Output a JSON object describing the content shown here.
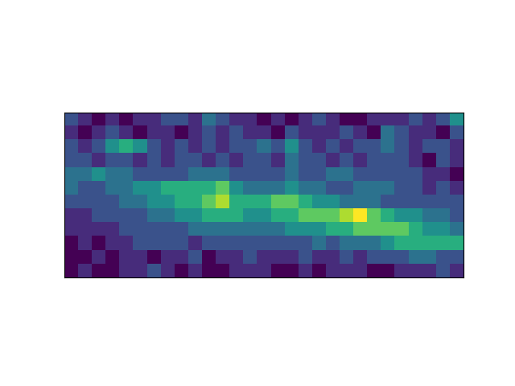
{
  "chart_data": {
    "type": "heatmap",
    "tick_labels": false,
    "cells": [
      [
        3,
        2,
        1,
        2,
        1,
        2,
        2,
        3,
        3,
        2,
        4,
        3,
        2,
        2,
        1,
        2,
        1,
        2,
        3,
        2,
        1,
        1,
        2,
        2,
        2,
        3,
        2,
        3,
        5
      ],
      [
        2,
        1,
        2,
        3,
        2,
        1,
        2,
        2,
        1,
        2,
        3,
        2,
        3,
        2,
        2,
        1,
        3,
        2,
        2,
        2,
        3,
        2,
        1,
        4,
        3,
        2,
        2,
        1,
        3
      ],
      [
        3,
        2,
        3,
        5,
        6,
        5,
        3,
        2,
        3,
        2,
        3,
        2,
        3,
        3,
        4,
        3,
        5,
        3,
        2,
        3,
        2,
        3,
        3,
        4,
        3,
        2,
        3,
        3,
        2
      ],
      [
        3,
        3,
        2,
        3,
        3,
        2,
        3,
        2,
        3,
        3,
        2,
        3,
        2,
        3,
        3,
        2,
        4,
        3,
        3,
        2,
        3,
        2,
        3,
        3,
        3,
        2,
        1,
        3,
        2
      ],
      [
        4,
        4,
        5,
        4,
        4,
        3,
        3,
        3,
        3,
        4,
        4,
        4,
        3,
        3,
        3,
        3,
        4,
        3,
        3,
        4,
        4,
        3,
        3,
        3,
        3,
        3,
        2,
        2,
        1
      ],
      [
        4,
        3,
        3,
        4,
        4,
        5,
        5,
        6,
        6,
        6,
        6,
        7,
        5,
        4,
        4,
        4,
        5,
        4,
        4,
        3,
        3,
        4,
        4,
        4,
        3,
        3,
        2,
        3,
        2
      ],
      [
        3,
        3,
        3,
        3,
        4,
        4,
        5,
        5,
        6,
        6,
        7,
        8,
        6,
        6,
        6,
        7,
        7,
        6,
        5,
        5,
        4,
        4,
        4,
        3,
        3,
        3,
        3,
        3,
        3
      ],
      [
        2,
        2,
        3,
        3,
        3,
        3,
        4,
        4,
        5,
        5,
        6,
        6,
        6,
        5,
        5,
        6,
        6,
        7,
        7,
        7,
        8,
        9,
        7,
        6,
        5,
        5,
        4,
        4,
        3
      ],
      [
        2,
        2,
        2,
        2,
        3,
        3,
        3,
        3,
        3,
        4,
        4,
        4,
        4,
        4,
        4,
        4,
        5,
        5,
        5,
        6,
        6,
        7,
        7,
        7,
        7,
        6,
        5,
        5,
        4
      ],
      [
        1,
        2,
        1,
        2,
        2,
        3,
        3,
        3,
        3,
        2,
        3,
        3,
        3,
        3,
        3,
        3,
        3,
        3,
        4,
        3,
        4,
        4,
        4,
        5,
        6,
        6,
        6,
        6,
        6
      ],
      [
        1,
        1,
        2,
        1,
        2,
        2,
        1,
        2,
        2,
        3,
        1,
        2,
        2,
        3,
        2,
        2,
        2,
        3,
        2,
        2,
        3,
        2,
        3,
        3,
        3,
        4,
        4,
        3,
        3
      ],
      [
        1,
        2,
        1,
        1,
        2,
        2,
        3,
        2,
        1,
        2,
        1,
        1,
        2,
        2,
        2,
        1,
        1,
        2,
        1,
        2,
        2,
        2,
        1,
        1,
        2,
        2,
        2,
        3,
        2
      ]
    ]
  }
}
